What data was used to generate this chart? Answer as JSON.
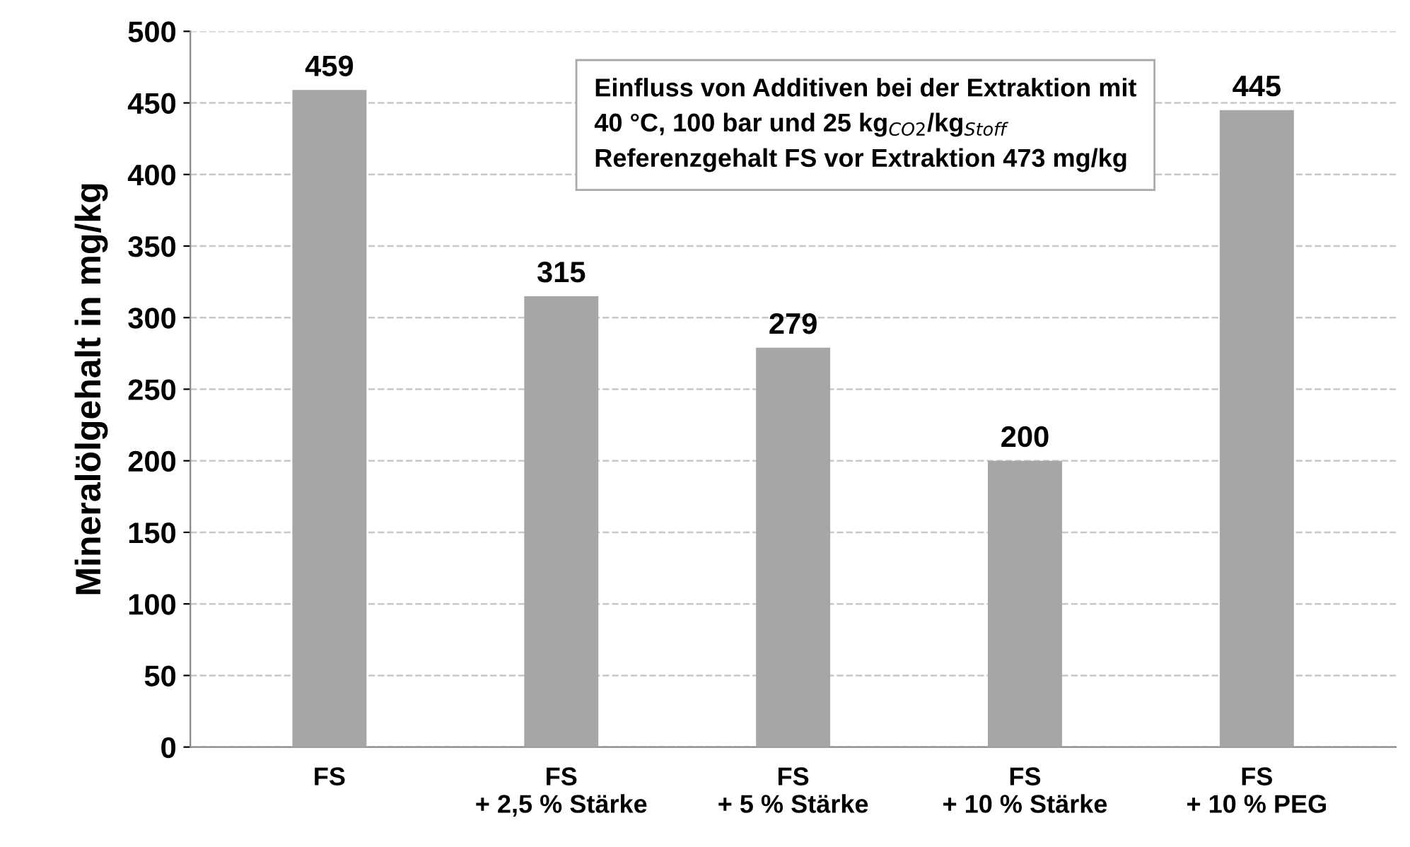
{
  "chart_data": {
    "type": "bar",
    "ylabel": "Mineralölgehalt in mg/kg",
    "categories": [
      "FS",
      "FS\n+ 2,5 % Stärke",
      "FS\n+ 5 % Stärke",
      "FS\n+ 10 % Stärke",
      "FS\n+ 10 % PEG"
    ],
    "values": [
      459,
      315,
      279,
      200,
      445
    ],
    "color": "#a6a6a6",
    "ylim": [
      0,
      500
    ],
    "yticks": [
      0,
      50,
      100,
      150,
      200,
      250,
      300,
      350,
      400,
      450,
      500
    ],
    "grid": "y",
    "data_labels": true,
    "annotations": [
      "Einfluss von Additiven bei der Extraktion mit\n40 °C, 100 bar und 25 kg$_{CO2}$/kg$_{Stoff}$\nReferenzgehalt FS vor Extraktion 473 mg/kg"
    ]
  }
}
